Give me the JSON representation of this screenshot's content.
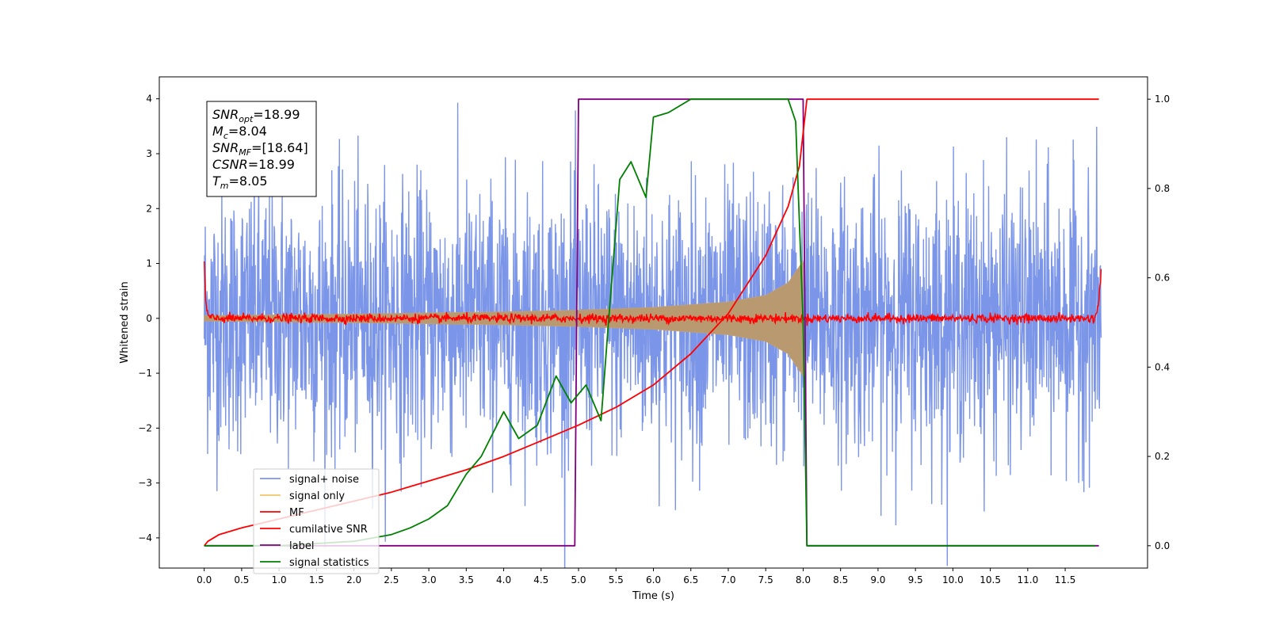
{
  "chart_data": {
    "type": "line",
    "xlabel": "Time (s)",
    "ylabel": "Whitened strain",
    "xlim": [
      -0.6,
      12.6
    ],
    "ylim": [
      -4.55,
      4.4
    ],
    "y2lim": [
      -0.05,
      1.05
    ],
    "xticks": [
      "0.0",
      "0.5",
      "1.0",
      "1.5",
      "2.0",
      "2.5",
      "3.0",
      "3.5",
      "4.0",
      "4.5",
      "5.0",
      "5.5",
      "6.0",
      "6.5",
      "7.0",
      "7.5",
      "8.0",
      "8.5",
      "9.0",
      "9.5",
      "10.0",
      "10.5",
      "11.0",
      "11.5"
    ],
    "yticks": [
      "−4",
      "−3",
      "−2",
      "−1",
      "0",
      "1",
      "2",
      "3",
      "4"
    ],
    "y2ticks": [
      "0.0",
      "0.2",
      "0.4",
      "0.6",
      "0.8",
      "1.0"
    ],
    "annotation": [
      {
        "sym": "SNR",
        "sub": "opt",
        "val": "=18.99"
      },
      {
        "sym": "M",
        "sub": "c",
        "val": "=8.04"
      },
      {
        "sym": "SNR",
        "sub": "MF",
        "val": "=[18.64]"
      },
      {
        "sym": "CSNR",
        "sub": "",
        "val": "=18.99"
      },
      {
        "sym": "T",
        "sub": "m",
        "val": "=8.05"
      }
    ],
    "legend": [
      {
        "label": "signal+ noise",
        "color": "#7b95e8"
      },
      {
        "label": "signal only",
        "color": "#f5c46a"
      },
      {
        "label": "MF",
        "color": "#ff0000"
      },
      {
        "label": "cumilative SNR",
        "color": "#ff0000"
      },
      {
        "label": "label",
        "color": "#800080"
      },
      {
        "label": "signal statistics",
        "color": "#008000"
      }
    ],
    "series": [
      {
        "name": "label",
        "axis": "right",
        "x": [
          0.0,
          4.95,
          5.0,
          8.0,
          8.05,
          11.95
        ],
        "y": [
          0.0,
          0.0,
          1.0,
          1.0,
          0.0,
          0.0
        ]
      },
      {
        "name": "cumilative SNR",
        "axis": "right",
        "x": [
          0.0,
          0.05,
          0.2,
          0.5,
          1.0,
          1.5,
          2.0,
          2.5,
          3.0,
          3.5,
          4.0,
          4.5,
          5.0,
          5.5,
          6.0,
          6.5,
          7.0,
          7.5,
          7.8,
          7.95,
          8.05,
          11.95
        ],
        "y": [
          0.0,
          0.01,
          0.025,
          0.04,
          0.06,
          0.08,
          0.1,
          0.12,
          0.145,
          0.17,
          0.2,
          0.235,
          0.27,
          0.31,
          0.36,
          0.43,
          0.52,
          0.65,
          0.76,
          0.85,
          1.0,
          1.0
        ]
      },
      {
        "name": "signal statistics",
        "axis": "right",
        "x": [
          0.0,
          0.5,
          1.0,
          1.5,
          2.0,
          2.5,
          2.75,
          3.0,
          3.25,
          3.5,
          3.7,
          4.0,
          4.2,
          4.45,
          4.7,
          4.9,
          5.1,
          5.3,
          5.4,
          5.55,
          5.7,
          5.9,
          6.0,
          6.2,
          6.5,
          7.0,
          7.5,
          7.8,
          7.9,
          8.0,
          8.05,
          8.1,
          11.9
        ],
        "y": [
          0.0,
          0.0,
          0.0,
          0.005,
          0.01,
          0.025,
          0.04,
          0.06,
          0.09,
          0.16,
          0.2,
          0.3,
          0.24,
          0.27,
          0.38,
          0.32,
          0.36,
          0.28,
          0.5,
          0.82,
          0.86,
          0.78,
          0.96,
          0.97,
          1.0,
          1.0,
          1.0,
          1.0,
          0.95,
          0.5,
          0.0,
          0.0,
          0.0
        ]
      },
      {
        "name": "MF",
        "axis": "left",
        "x": [
          0.0,
          0.02,
          0.05,
          0.1,
          11.9,
          11.95,
          11.98
        ],
        "y": [
          1.0,
          0.3,
          0.05,
          0.0,
          0.0,
          0.3,
          0.9
        ],
        "noise_amp": 0.08
      },
      {
        "name": "signal+ noise",
        "axis": "left",
        "x": [
          0.0,
          11.98
        ],
        "y": [
          0.0,
          0.0
        ],
        "noise_amp": 2.0
      },
      {
        "name": "signal only",
        "axis": "left",
        "x": [
          0.0,
          2.0,
          4.0,
          5.0,
          6.0,
          7.0,
          7.5,
          7.8,
          7.95,
          8.0
        ],
        "y": [
          0.05,
          0.08,
          0.12,
          0.15,
          0.2,
          0.3,
          0.42,
          0.65,
          0.95,
          1.05
        ]
      }
    ]
  }
}
